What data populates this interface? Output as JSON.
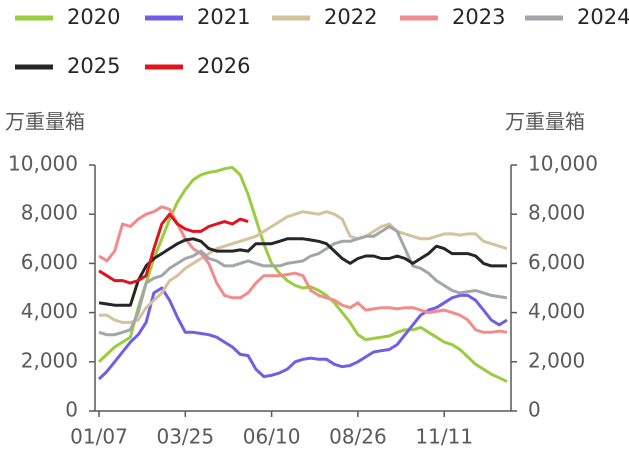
{
  "chart_data": {
    "type": "line",
    "y_label": "万重量箱",
    "y2_label": "万重量箱",
    "categories": [
      "01/07",
      null,
      null,
      null,
      null,
      null,
      null,
      null,
      null,
      null,
      null,
      "03/25",
      null,
      null,
      null,
      null,
      null,
      null,
      null,
      null,
      null,
      null,
      "06/10",
      null,
      null,
      null,
      null,
      null,
      null,
      null,
      null,
      null,
      null,
      "08/26",
      null,
      null,
      null,
      null,
      null,
      null,
      null,
      null,
      null,
      null,
      "11/11",
      null,
      null,
      null,
      null,
      null,
      null,
      null,
      null
    ],
    "ylim": [
      0,
      10000
    ],
    "y2lim": [
      0,
      10000
    ],
    "yticks": [
      0,
      {
        "value": 2000,
        "label": "2,000"
      },
      {
        "value": 4000,
        "label": "4,000"
      },
      {
        "value": 6000,
        "label": "6,000"
      },
      {
        "value": 8000,
        "label": "8,000"
      },
      {
        "value": 10000,
        "label": "10,000"
      }
    ],
    "y2ticks": [
      0,
      {
        "value": 2000,
        "label": "2,000"
      },
      {
        "value": 4000,
        "label": "4,000"
      },
      {
        "value": 6000,
        "label": "6,000"
      },
      {
        "value": 8000,
        "label": "8,000"
      },
      {
        "value": 10000,
        "label": "10,000"
      }
    ],
    "grid": false,
    "series": [
      {
        "name": "2020",
        "color": "#9acd3e",
        "values": [
          2000,
          2300,
          2600,
          2800,
          3000,
          4200,
          5200,
          6200,
          7000,
          7800,
          8500,
          9000,
          9400,
          9600,
          9700,
          9750,
          9850,
          9900,
          9600,
          8800,
          7800,
          6800,
          6000,
          5600,
          5300,
          5100,
          5000,
          5050,
          4900,
          4700,
          4400,
          4000,
          3600,
          3100,
          2900,
          2950,
          3000,
          3050,
          3200,
          3300,
          3300,
          3400,
          3200,
          3000,
          2800,
          2700,
          2500,
          2200,
          1900,
          1700,
          1500,
          1350,
          1200
        ]
      },
      {
        "name": "2021",
        "color": "#6f5fe6",
        "values": [
          1300,
          1600,
          2000,
          2400,
          2800,
          3100,
          3600,
          4800,
          5000,
          4500,
          3800,
          3200,
          3200,
          3150,
          3100,
          3000,
          2800,
          2600,
          2300,
          2250,
          1700,
          1400,
          1450,
          1550,
          1700,
          2000,
          2100,
          2150,
          2100,
          2100,
          1900,
          1800,
          1850,
          2000,
          2200,
          2400,
          2450,
          2500,
          2700,
          3100,
          3500,
          3900,
          4100,
          4200,
          4400,
          4600,
          4700,
          4700,
          4500,
          4100,
          3700,
          3500,
          3700
        ]
      },
      {
        "name": "2022",
        "color": "#d5c19c",
        "values": [
          3900,
          3900,
          3700,
          3600,
          3600,
          3700,
          4200,
          4500,
          4800,
          5300,
          5500,
          5800,
          6000,
          6200,
          6400,
          6600,
          6700,
          6800,
          6900,
          7000,
          7100,
          7300,
          7500,
          7700,
          7900,
          8000,
          8100,
          8050,
          8000,
          8100,
          8000,
          7800,
          7100,
          7000,
          7100,
          7300,
          7500,
          7600,
          7300,
          7200,
          7100,
          7000,
          7000,
          7100,
          7200,
          7200,
          7150,
          7200,
          7200,
          6900,
          6800,
          6700,
          6600
        ]
      },
      {
        "name": "2023",
        "color": "#f28b8b",
        "values": [
          6300,
          6100,
          6500,
          7600,
          7500,
          7800,
          8000,
          8100,
          8300,
          8200,
          7600,
          7000,
          6600,
          6400,
          6000,
          5200,
          4700,
          4600,
          4600,
          4800,
          5200,
          5500,
          5500,
          5500,
          5550,
          5600,
          5500,
          4900,
          4700,
          4600,
          4500,
          4300,
          4200,
          4400,
          4100,
          4150,
          4200,
          4200,
          4150,
          4200,
          4200,
          4100,
          4000,
          4050,
          4100,
          4000,
          3900,
          3700,
          3300,
          3200,
          3200,
          3250,
          3200
        ]
      },
      {
        "name": "2024",
        "color": "#a2a5a9",
        "values": [
          3200,
          3100,
          3100,
          3200,
          3300,
          4000,
          5200,
          5400,
          5500,
          5800,
          6000,
          6200,
          6300,
          6500,
          6200,
          6100,
          5900,
          5900,
          6000,
          6100,
          6000,
          5900,
          5900,
          5900,
          6000,
          6050,
          6100,
          6300,
          6400,
          6600,
          6800,
          6900,
          6900,
          7000,
          7100,
          7100,
          7300,
          7500,
          7300,
          6600,
          5900,
          5800,
          5600,
          5300,
          5100,
          4900,
          4800,
          4850,
          4900,
          4800,
          4700,
          4650,
          4600
        ]
      },
      {
        "name": "2025",
        "color": "#262626",
        "values": [
          4400,
          4350,
          4300,
          4300,
          4300,
          5300,
          5900,
          6200,
          6400,
          6600,
          6800,
          6950,
          7000,
          6900,
          6600,
          6500,
          6500,
          6500,
          6550,
          6500,
          6800,
          6800,
          6800,
          6900,
          7000,
          7000,
          7000,
          6950,
          6900,
          6800,
          6500,
          6200,
          6000,
          6200,
          6300,
          6300,
          6200,
          6200,
          6300,
          6200,
          6000,
          6200,
          6400,
          6700,
          6600,
          6400,
          6400,
          6400,
          6300,
          6000,
          5900,
          5900,
          5900
        ]
      },
      {
        "name": "2026",
        "color": "#e0141e",
        "values": [
          5700,
          5500,
          5300,
          5300,
          5200,
          5300,
          5500,
          6600,
          7600,
          8000,
          7600,
          7400,
          7300,
          7300,
          7500,
          7600,
          7700,
          7600,
          7800,
          7700,
          null,
          null,
          null,
          null,
          null,
          null,
          null,
          null,
          null,
          null,
          null,
          null,
          null,
          null,
          null,
          null,
          null,
          null,
          null,
          null,
          null,
          null,
          null,
          null,
          null,
          null,
          null,
          null,
          null,
          null,
          null,
          null,
          null
        ]
      }
    ]
  }
}
